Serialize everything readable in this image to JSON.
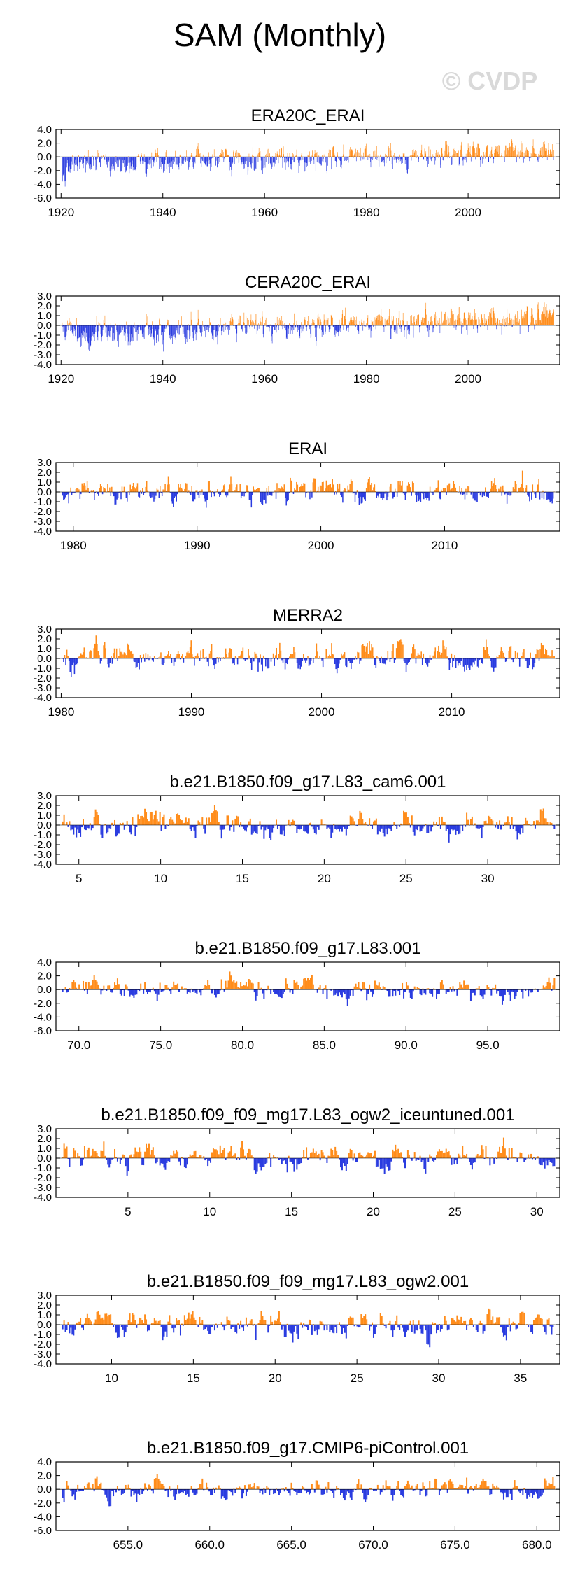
{
  "title": "SAM (Monthly)",
  "watermark": "© CVDP",
  "colors": {
    "positive": "#ff8c1a",
    "negative": "#2a3ce0",
    "axis": "#000000",
    "frame": "#000000"
  },
  "chart_data": [
    {
      "type": "bar",
      "title": "ERA20C_ERAI",
      "x_range": [
        1919,
        2018
      ],
      "ylim": [
        -6.0,
        4.0
      ],
      "y_ticks": [
        4.0,
        2.0,
        0.0,
        -2.0,
        -4.0,
        -6.0
      ],
      "y_tick_labels": [
        "4.0",
        "2.0",
        "0.0",
        "-2.0",
        "-4.0",
        "-6.0"
      ],
      "x_ticks": [
        1920,
        1940,
        1960,
        1980,
        2000
      ],
      "x_tick_labels": [
        "1920",
        "1940",
        "1960",
        "1980",
        "2000"
      ],
      "series_profile": {
        "months": 1188,
        "amplitude": 1.3,
        "trend_start": -1.3,
        "trend_end": 0.9
      }
    },
    {
      "type": "bar",
      "title": "CERA20C_ERAI",
      "x_range": [
        1919,
        2018
      ],
      "ylim": [
        -4.0,
        3.0
      ],
      "y_ticks": [
        3.0,
        2.0,
        1.0,
        0.0,
        -1.0,
        -2.0,
        -3.0,
        -4.0
      ],
      "y_tick_labels": [
        "3.0",
        "2.0",
        "1.0",
        "0.0",
        "-1.0",
        "-2.0",
        "-3.0",
        "-4.0"
      ],
      "x_ticks": [
        1920,
        1940,
        1960,
        1980,
        2000
      ],
      "x_tick_labels": [
        "1920",
        "1940",
        "1960",
        "1980",
        "2000"
      ],
      "series_profile": {
        "months": 1188,
        "amplitude": 1.0,
        "trend_start": -0.9,
        "trend_end": 0.8
      }
    },
    {
      "type": "bar",
      "title": "ERAI",
      "x_range": [
        1978.6,
        2019.3
      ],
      "ylim": [
        -4.0,
        3.0
      ],
      "y_ticks": [
        3.0,
        2.0,
        1.0,
        0.0,
        -1.0,
        -2.0,
        -3.0,
        -4.0
      ],
      "y_tick_labels": [
        "3.0",
        "2.0",
        "1.0",
        "0.0",
        "-1.0",
        "-2.0",
        "-3.0",
        "-4.0"
      ],
      "x_ticks": [
        1980,
        1990,
        2000,
        2010
      ],
      "x_tick_labels": [
        "1980",
        "1990",
        "2000",
        "2010"
      ],
      "series_profile": {
        "months": 480,
        "amplitude": 1.0,
        "trend_start": 0,
        "trend_end": 0
      }
    },
    {
      "type": "bar",
      "title": "MERRA2",
      "x_range": [
        1979.6,
        2018.3
      ],
      "ylim": [
        -4.0,
        3.0
      ],
      "y_ticks": [
        3.0,
        2.0,
        1.0,
        0.0,
        -1.0,
        -2.0,
        -3.0,
        -4.0
      ],
      "y_tick_labels": [
        "3.0",
        "2.0",
        "1.0",
        "0.0",
        "-1.0",
        "-2.0",
        "-3.0",
        "-4.0"
      ],
      "x_ticks": [
        1980,
        1990,
        2000,
        2010
      ],
      "x_tick_labels": [
        "1980",
        "1990",
        "2000",
        "2010"
      ],
      "series_profile": {
        "months": 456,
        "amplitude": 1.0,
        "trend_start": 0,
        "trend_end": 0
      }
    },
    {
      "type": "bar",
      "title": "b.e21.B1850.f09_g17.L83_cam6.001",
      "x_range": [
        3.6,
        34.4
      ],
      "ylim": [
        -4.0,
        3.0
      ],
      "y_ticks": [
        3.0,
        2.0,
        1.0,
        0.0,
        -1.0,
        -2.0,
        -3.0,
        -4.0
      ],
      "y_tick_labels": [
        "3.0",
        "2.0",
        "1.0",
        "0.0",
        "-1.0",
        "-2.0",
        "-3.0",
        "-4.0"
      ],
      "x_ticks": [
        5,
        10,
        15,
        20,
        25,
        30
      ],
      "x_tick_labels": [
        "5",
        "10",
        "15",
        "20",
        "25",
        "30"
      ],
      "series_profile": {
        "months": 360,
        "amplitude": 1.0,
        "trend_start": 0,
        "trend_end": 0
      }
    },
    {
      "type": "bar",
      "title": "b.e21.B1850.f09_g17.L83.001",
      "x_range": [
        68.6,
        99.4
      ],
      "ylim": [
        -6.0,
        4.0
      ],
      "y_ticks": [
        4.0,
        2.0,
        0.0,
        -2.0,
        -4.0,
        -6.0
      ],
      "y_tick_labels": [
        "4.0",
        "2.0",
        "0.0",
        "-2.0",
        "-4.0",
        "-6.0"
      ],
      "x_ticks": [
        70,
        75,
        80,
        85,
        90,
        95
      ],
      "x_tick_labels": [
        "70.0",
        "75.0",
        "80.0",
        "85.0",
        "90.0",
        "95.0"
      ],
      "series_profile": {
        "months": 360,
        "amplitude": 1.2,
        "trend_start": 0,
        "trend_end": 0
      }
    },
    {
      "type": "bar",
      "title": "b.e21.B1850.f09_f09_mg17.L83_ogw2_iceuntuned.001",
      "x_range": [
        0.6,
        31.4
      ],
      "ylim": [
        -4.0,
        3.0
      ],
      "y_ticks": [
        3.0,
        2.0,
        1.0,
        0.0,
        -1.0,
        -2.0,
        -3.0,
        -4.0
      ],
      "y_tick_labels": [
        "3.0",
        "2.0",
        "1.0",
        "0.0",
        "-1.0",
        "-2.0",
        "-3.0",
        "-4.0"
      ],
      "x_ticks": [
        5,
        10,
        15,
        20,
        25,
        30
      ],
      "x_tick_labels": [
        "5",
        "10",
        "15",
        "20",
        "25",
        "30"
      ],
      "series_profile": {
        "months": 360,
        "amplitude": 1.0,
        "trend_start": 0,
        "trend_end": 0
      }
    },
    {
      "type": "bar",
      "title": "b.e21.B1850.f09_f09_mg17.L83_ogw2.001",
      "x_range": [
        6.6,
        37.4
      ],
      "ylim": [
        -4.0,
        3.0
      ],
      "y_ticks": [
        3.0,
        2.0,
        1.0,
        0.0,
        -1.0,
        -2.0,
        -3.0,
        -4.0
      ],
      "y_tick_labels": [
        "3.0",
        "2.0",
        "1.0",
        "0.0",
        "-1.0",
        "-2.0",
        "-3.0",
        "-4.0"
      ],
      "x_ticks": [
        10,
        15,
        20,
        25,
        30,
        35
      ],
      "x_tick_labels": [
        "10",
        "15",
        "20",
        "25",
        "30",
        "35"
      ],
      "series_profile": {
        "months": 360,
        "amplitude": 1.0,
        "trend_start": 0,
        "trend_end": 0
      }
    },
    {
      "type": "bar",
      "title": "b.e21.B1850.f09_g17.CMIP6-piControl.001",
      "x_range": [
        650.6,
        681.4
      ],
      "ylim": [
        -6.0,
        4.0
      ],
      "y_ticks": [
        4.0,
        2.0,
        0.0,
        -2.0,
        -4.0,
        -6.0
      ],
      "y_tick_labels": [
        "4.0",
        "2.0",
        "0.0",
        "-2.0",
        "-4.0",
        "-6.0"
      ],
      "x_ticks": [
        655,
        660,
        665,
        670,
        675,
        680
      ],
      "x_tick_labels": [
        "655.0",
        "660.0",
        "665.0",
        "670.0",
        "675.0",
        "680.0"
      ],
      "series_profile": {
        "months": 360,
        "amplitude": 1.2,
        "trend_start": 0,
        "trend_end": 0
      }
    }
  ]
}
